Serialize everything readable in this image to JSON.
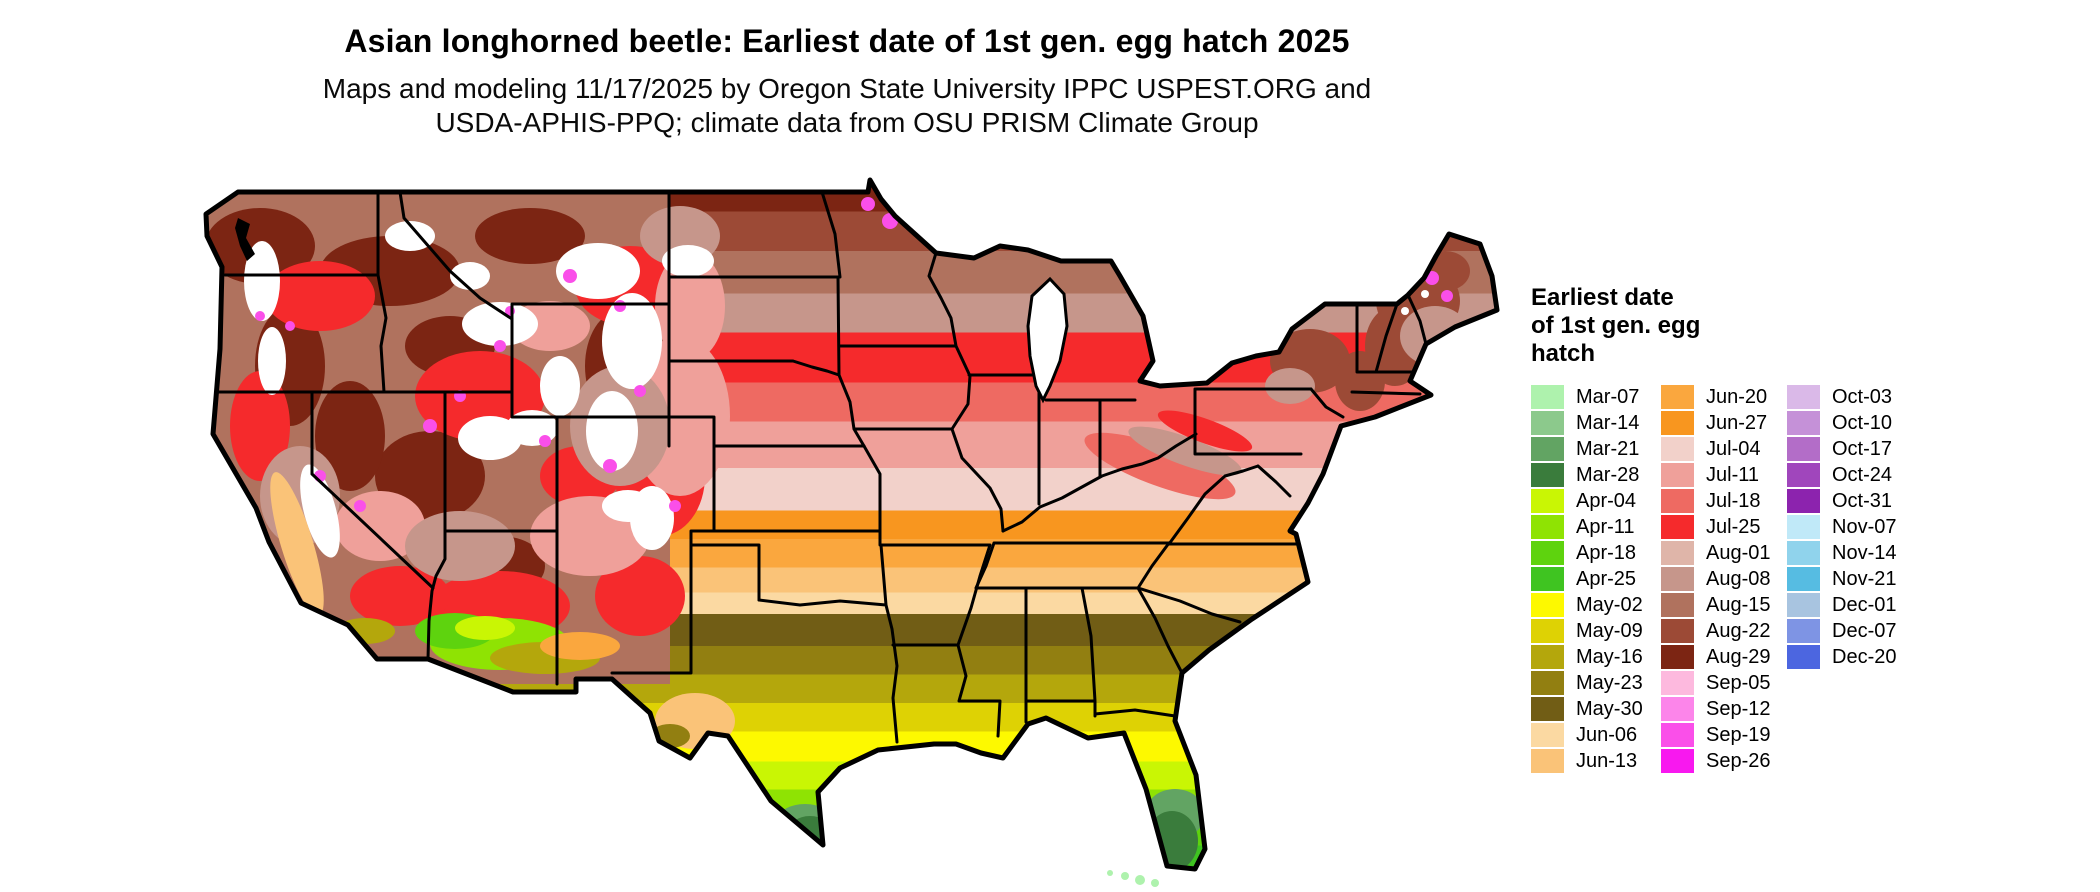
{
  "header": {
    "title": "Asian longhorned beetle: Earliest date of 1st gen. egg hatch 2025",
    "subtitle_line1": "Maps and modeling 11/17/2025 by Oregon State University IPPC USPEST.ORG and",
    "subtitle_line2": "USDA-APHIS-PPQ; climate data from OSU PRISM Climate Group"
  },
  "legend": {
    "title_lines": [
      "Earliest date",
      "of 1st gen. egg",
      "hatch"
    ],
    "columns": [
      {
        "entries": [
          {
            "label": "Mar-07",
            "color": "#aef2ad"
          },
          {
            "label": "Mar-14",
            "color": "#8cc98c"
          },
          {
            "label": "Mar-21",
            "color": "#62a463"
          },
          {
            "label": "Mar-28",
            "color": "#3a7c3c"
          },
          {
            "label": "Apr-04",
            "color": "#c9f604"
          },
          {
            "label": "Apr-11",
            "color": "#8fe303"
          },
          {
            "label": "Apr-18",
            "color": "#5ed30e"
          },
          {
            "label": "Apr-25",
            "color": "#3fc421"
          },
          {
            "label": "May-02",
            "color": "#fdf900"
          },
          {
            "label": "May-09",
            "color": "#ded204"
          },
          {
            "label": "May-16",
            "color": "#b4a70c"
          },
          {
            "label": "May-23",
            "color": "#927f11"
          },
          {
            "label": "May-30",
            "color": "#715d15"
          },
          {
            "label": "Jun-06",
            "color": "#fbd9a2"
          },
          {
            "label": "Jun-13",
            "color": "#fac378"
          }
        ]
      },
      {
        "entries": [
          {
            "label": "Jun-20",
            "color": "#faa73e"
          },
          {
            "label": "Jun-27",
            "color": "#f8961f"
          },
          {
            "label": "Jul-04",
            "color": "#f2d1ca"
          },
          {
            "label": "Jul-11",
            "color": "#efa09a"
          },
          {
            "label": "Jul-18",
            "color": "#ee6a62"
          },
          {
            "label": "Jul-25",
            "color": "#f52a2c"
          },
          {
            "label": "Aug-01",
            "color": "#dfb5a9"
          },
          {
            "label": "Aug-08",
            "color": "#c6968b"
          },
          {
            "label": "Aug-15",
            "color": "#b0725e"
          },
          {
            "label": "Aug-22",
            "color": "#9c4a36"
          },
          {
            "label": "Aug-29",
            "color": "#7c2513"
          },
          {
            "label": "Sep-05",
            "color": "#fdb9de"
          },
          {
            "label": "Sep-12",
            "color": "#fc85ea"
          },
          {
            "label": "Sep-19",
            "color": "#fa4fe9"
          },
          {
            "label": "Sep-26",
            "color": "#f818ef"
          }
        ]
      },
      {
        "entries": [
          {
            "label": "Oct-03",
            "color": "#dab9e8"
          },
          {
            "label": "Oct-10",
            "color": "#c591d8"
          },
          {
            "label": "Oct-17",
            "color": "#b36dc8"
          },
          {
            "label": "Oct-24",
            "color": "#a046bc"
          },
          {
            "label": "Oct-31",
            "color": "#8c23ae"
          },
          {
            "label": "Nov-07",
            "color": "#c0e9f8"
          },
          {
            "label": "Nov-14",
            "color": "#90d3ec"
          },
          {
            "label": "Nov-21",
            "color": "#56bce2"
          },
          {
            "label": "Dec-01",
            "color": "#a8c4e0"
          },
          {
            "label": "Dec-07",
            "color": "#7e94e4"
          },
          {
            "label": "Dec-20",
            "color": "#4c66e0"
          }
        ]
      }
    ]
  },
  "map": {
    "region": "Continental United States",
    "outline_color": "#000000",
    "no_data_color": "#ffffff",
    "latitude_bands": [
      {
        "to": 0.05,
        "label": "Aug-29",
        "color": "#7c2513"
      },
      {
        "to": 0.105,
        "label": "Aug-22",
        "color": "#9c4a36"
      },
      {
        "to": 0.165,
        "label": "Aug-15",
        "color": "#b0725e"
      },
      {
        "to": 0.22,
        "label": "Aug-08",
        "color": "#c6968b"
      },
      {
        "to": 0.29,
        "label": "Jul-25",
        "color": "#f52a2c"
      },
      {
        "to": 0.345,
        "label": "Jul-18",
        "color": "#ee6a62"
      },
      {
        "to": 0.41,
        "label": "Jul-11",
        "color": "#efa09a"
      },
      {
        "to": 0.47,
        "label": "Jul-04",
        "color": "#f2d1ca"
      },
      {
        "to": 0.51,
        "label": "Jun-27",
        "color": "#f8961f"
      },
      {
        "to": 0.55,
        "label": "Jun-20",
        "color": "#faa73e"
      },
      {
        "to": 0.585,
        "label": "Jun-13",
        "color": "#fac378"
      },
      {
        "to": 0.615,
        "label": "Jun-06",
        "color": "#fbd9a2"
      },
      {
        "to": 0.66,
        "label": "May-30",
        "color": "#715d15"
      },
      {
        "to": 0.7,
        "label": "May-23",
        "color": "#927f11"
      },
      {
        "to": 0.74,
        "label": "May-16",
        "color": "#b4a70c"
      },
      {
        "to": 0.78,
        "label": "May-09",
        "color": "#ded204"
      },
      {
        "to": 0.822,
        "label": "May-02",
        "color": "#fdf900"
      },
      {
        "to": 0.862,
        "label": "Apr-04",
        "color": "#c9f604"
      },
      {
        "to": 0.9,
        "label": "Apr-11",
        "color": "#8fe303"
      },
      {
        "to": 0.94,
        "label": "Apr-18",
        "color": "#5ed30e"
      },
      {
        "to": 1.0,
        "label": "Apr-25",
        "color": "#3fc421"
      }
    ]
  }
}
